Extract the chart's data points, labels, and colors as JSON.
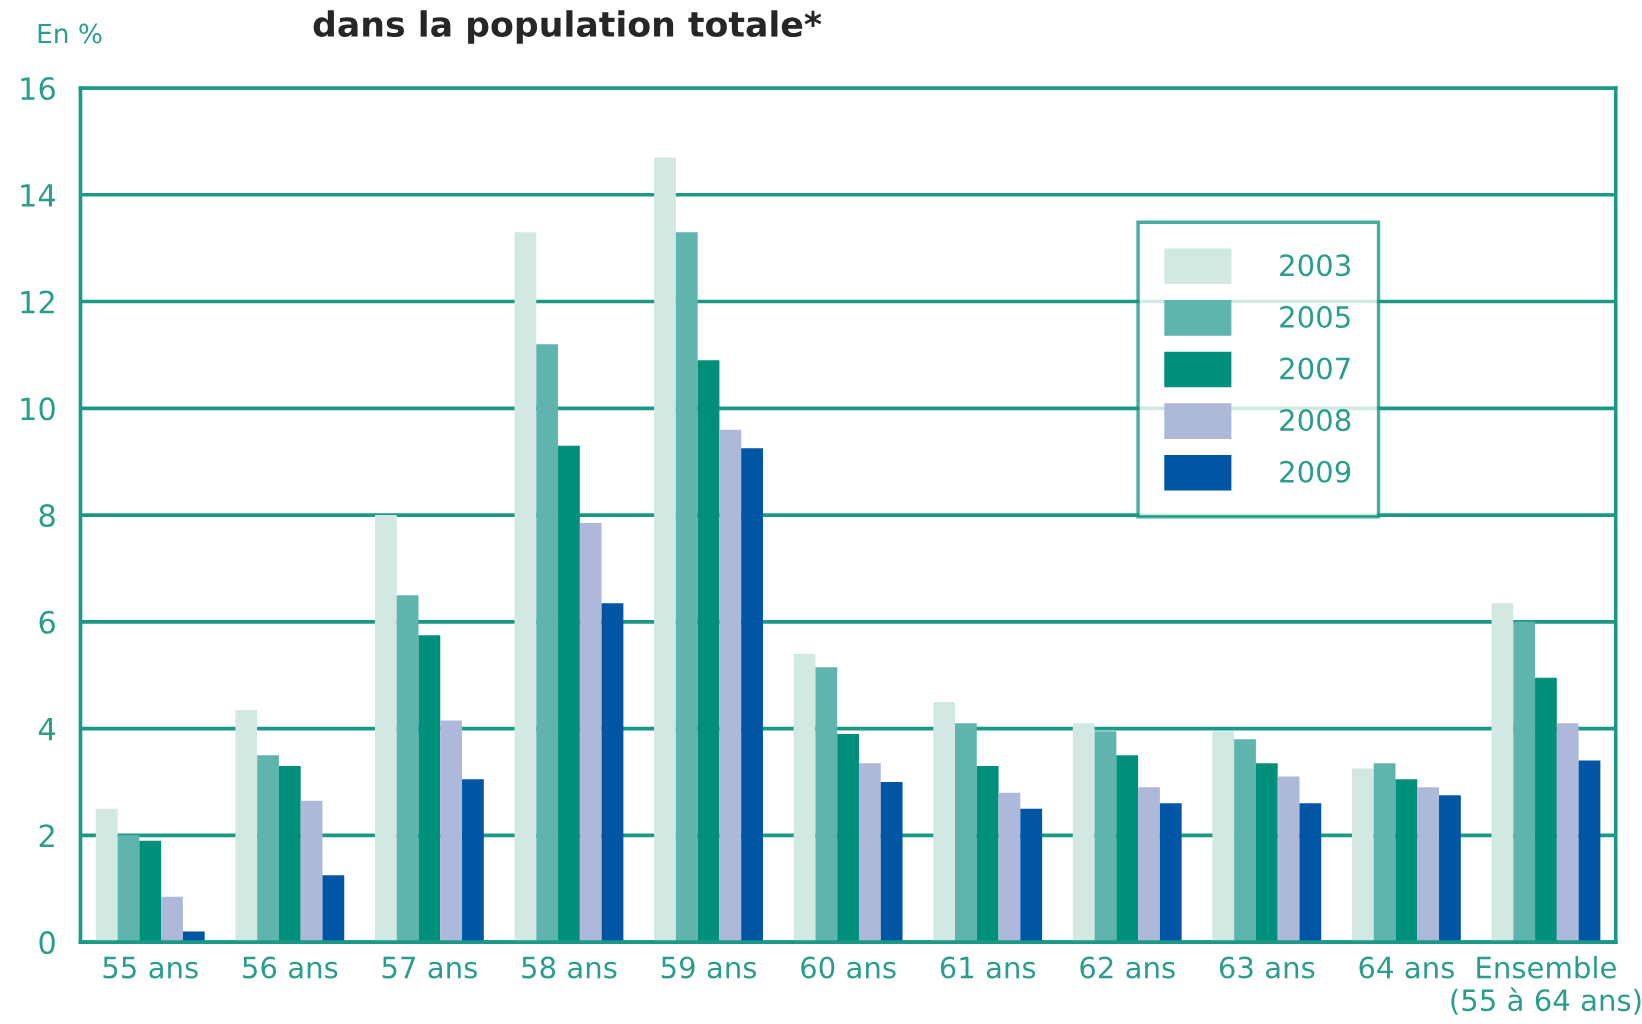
{
  "chart_data": {
    "type": "bar",
    "title": "dans la population totale*",
    "ylabel": "En %",
    "categories": [
      "55 ans",
      "56 ans",
      "57 ans",
      "58 ans",
      "59 ans",
      "60 ans",
      "61 ans",
      "62 ans",
      "63 ans",
      "64 ans",
      "Ensemble\n(55 à 64 ans)"
    ],
    "series": [
      {
        "name": "2003",
        "color": "#d1e8e3",
        "values": [
          2.5,
          4.35,
          8.0,
          13.3,
          14.7,
          5.4,
          4.5,
          4.1,
          3.95,
          3.25,
          6.35
        ]
      },
      {
        "name": "2005",
        "color": "#5fb5ad",
        "values": [
          2.0,
          3.5,
          6.5,
          11.2,
          13.3,
          5.15,
          4.1,
          3.95,
          3.8,
          3.35,
          6.0
        ]
      },
      {
        "name": "2007",
        "color": "#008f7a",
        "values": [
          1.9,
          3.3,
          5.75,
          9.3,
          10.9,
          3.9,
          3.3,
          3.5,
          3.35,
          3.05,
          4.95
        ]
      },
      {
        "name": "2008",
        "color": "#aeb8db",
        "values": [
          0.85,
          2.65,
          4.15,
          7.85,
          9.6,
          3.35,
          2.8,
          2.9,
          3.1,
          2.9,
          4.1
        ]
      },
      {
        "name": "2009",
        "color": "#0055a5",
        "values": [
          0.2,
          1.25,
          3.05,
          6.35,
          9.25,
          3.0,
          2.5,
          2.6,
          2.6,
          2.75,
          3.4
        ]
      }
    ],
    "ylim": [
      0,
      16
    ],
    "yticks": [
      0,
      2,
      4,
      6,
      8,
      10,
      12,
      14,
      16
    ],
    "grid": "y",
    "legend": "top right"
  }
}
